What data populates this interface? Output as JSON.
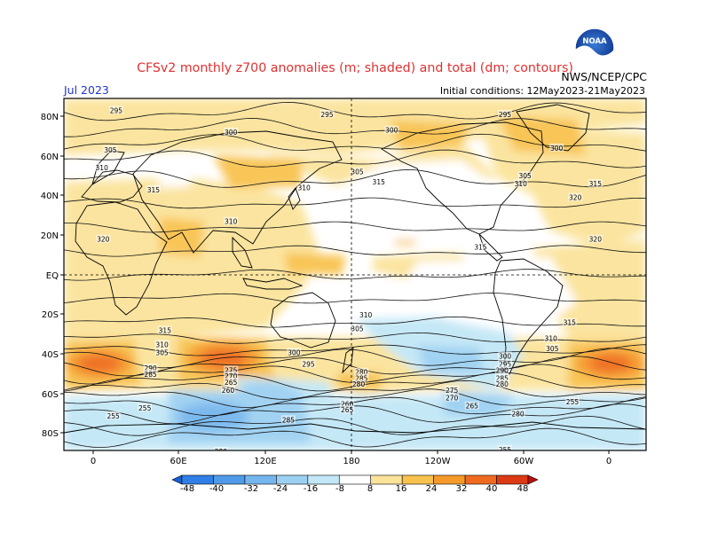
{
  "header": {
    "title": "CFSv2 monthly z700 anomalies (m; shaded) and total (dm; contours)",
    "month_label": "Jul 2023",
    "init_label": "Initial conditions: 12May2023-21May2023",
    "agency_label": "NWS/NCEP/CPC",
    "logo_text": "NOAA"
  },
  "axes": {
    "lat_labels": [
      "80N",
      "60N",
      "40N",
      "20N",
      "EQ",
      "20S",
      "40S",
      "60S",
      "80S"
    ],
    "lon_labels": [
      "0",
      "60E",
      "120E",
      "180",
      "120W",
      "60W",
      "0"
    ]
  },
  "colorbar": {
    "ticks": [
      "-48",
      "-40",
      "-32",
      "-24",
      "-16",
      "-8",
      "8",
      "16",
      "24",
      "32",
      "40",
      "48"
    ],
    "colors": [
      "#1560d8",
      "#2f7fe6",
      "#4f9be9",
      "#76b6ee",
      "#9cd0f2",
      "#c2e7f6",
      "#ffffff",
      "#fbe39a",
      "#f8c24e",
      "#f59a2a",
      "#ef6a1e",
      "#dc3a14",
      "#b8120e"
    ]
  },
  "contour_labels": [
    {
      "text": "295",
      "lon": 16,
      "lat": 83
    },
    {
      "text": "295",
      "lon": 163,
      "lat": 81
    },
    {
      "text": "300",
      "lon": 96,
      "lat": 72
    },
    {
      "text": "300",
      "lon": -152,
      "lat": 73
    },
    {
      "text": "295",
      "lon": -73,
      "lat": 81
    },
    {
      "text": "300",
      "lon": -37,
      "lat": 64
    },
    {
      "text": "305",
      "lon": 12,
      "lat": 63
    },
    {
      "text": "310",
      "lon": 6,
      "lat": 54
    },
    {
      "text": "305",
      "lon": -176,
      "lat": 52
    },
    {
      "text": "305",
      "lon": -59,
      "lat": 50
    },
    {
      "text": "310",
      "lon": -62,
      "lat": 46
    },
    {
      "text": "315",
      "lon": 42,
      "lat": 43
    },
    {
      "text": "310",
      "lon": 147,
      "lat": 44
    },
    {
      "text": "315",
      "lon": -161,
      "lat": 47
    },
    {
      "text": "315",
      "lon": -10,
      "lat": 46
    },
    {
      "text": "320",
      "lon": -24,
      "lat": 39
    },
    {
      "text": "310",
      "lon": 96,
      "lat": 27
    },
    {
      "text": "320",
      "lon": 7,
      "lat": 18
    },
    {
      "text": "320",
      "lon": -10,
      "lat": 18
    },
    {
      "text": "315",
      "lon": -90,
      "lat": 14
    },
    {
      "text": "310",
      "lon": -170,
      "lat": -20
    },
    {
      "text": "305",
      "lon": -176,
      "lat": -27
    },
    {
      "text": "315",
      "lon": 50,
      "lat": -28
    },
    {
      "text": "315",
      "lon": -28,
      "lat": -24
    },
    {
      "text": "310",
      "lon": 48,
      "lat": -35
    },
    {
      "text": "305",
      "lon": 48,
      "lat": -39
    },
    {
      "text": "300",
      "lon": 140,
      "lat": -39
    },
    {
      "text": "295",
      "lon": 150,
      "lat": -45
    },
    {
      "text": "310",
      "lon": -41,
      "lat": -32
    },
    {
      "text": "305",
      "lon": -40,
      "lat": -37
    },
    {
      "text": "290",
      "lon": 40,
      "lat": -47
    },
    {
      "text": "285",
      "lon": 40,
      "lat": -50
    },
    {
      "text": "275",
      "lon": 96,
      "lat": -48
    },
    {
      "text": "270",
      "lon": 96,
      "lat": -51
    },
    {
      "text": "265",
      "lon": 96,
      "lat": -54
    },
    {
      "text": "260",
      "lon": 94,
      "lat": -58
    },
    {
      "text": "280",
      "lon": -173,
      "lat": -49
    },
    {
      "text": "285",
      "lon": -173,
      "lat": -52
    },
    {
      "text": "280",
      "lon": -175,
      "lat": -55
    },
    {
      "text": "300",
      "lon": -73,
      "lat": -41
    },
    {
      "text": "295",
      "lon": -73,
      "lat": -45
    },
    {
      "text": "290",
      "lon": -75,
      "lat": -48
    },
    {
      "text": "285",
      "lon": -75,
      "lat": -52
    },
    {
      "text": "280",
      "lon": -75,
      "lat": -55
    },
    {
      "text": "275",
      "lon": -110,
      "lat": -58
    },
    {
      "text": "270",
      "lon": -110,
      "lat": -62
    },
    {
      "text": "265",
      "lon": -96,
      "lat": -66
    },
    {
      "text": "280",
      "lon": -64,
      "lat": -70
    },
    {
      "text": "260",
      "lon": 177,
      "lat": -65
    },
    {
      "text": "265",
      "lon": 177,
      "lat": -68
    },
    {
      "text": "255",
      "lon": 36,
      "lat": -67
    },
    {
      "text": "255",
      "lon": 14,
      "lat": -71
    },
    {
      "text": "285",
      "lon": 136,
      "lat": -73
    },
    {
      "text": "255",
      "lon": -26,
      "lat": -64
    },
    {
      "text": "255",
      "lon": -73,
      "lat": -88
    },
    {
      "text": "280",
      "lon": 89,
      "lat": -89
    }
  ],
  "contour_lats": [
    82,
    74,
    66,
    58,
    48,
    36,
    24,
    12,
    0,
    -12,
    -24,
    -32,
    -38,
    -42,
    -46,
    -50,
    -54,
    -58,
    -62,
    -66,
    -70,
    -76,
    -82
  ],
  "map_style": {
    "ocean": "#ffffff",
    "land_outline": "#000000",
    "frame": "#000000"
  }
}
